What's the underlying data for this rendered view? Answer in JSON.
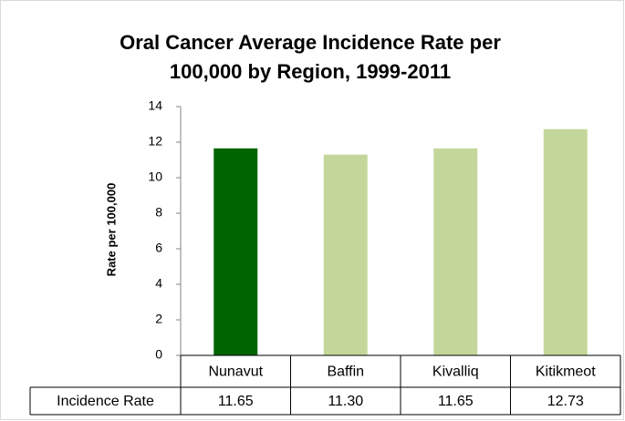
{
  "chart_data": {
    "type": "bar",
    "title": [
      "Oral Cancer Average Incidence Rate per",
      "100,000 by Region, 1999-2011"
    ],
    "y_label": "Rate per 100,000",
    "categories": [
      "Nunavut",
      "Baffin",
      "Kivalliq",
      "Kitikmeot"
    ],
    "values": [
      11.65,
      11.3,
      11.65,
      12.73
    ],
    "value_labels": [
      "11.65",
      "11.30",
      "11.65",
      "12.73"
    ],
    "colors": [
      "#006400",
      "#c4d79b",
      "#c4d79b",
      "#c4d79b"
    ],
    "table_row_label": "Incidence Rate",
    "ylim": [
      0,
      14
    ],
    "yticks": [
      0,
      2,
      4,
      6,
      8,
      10,
      12,
      14
    ],
    "grid": false
  }
}
